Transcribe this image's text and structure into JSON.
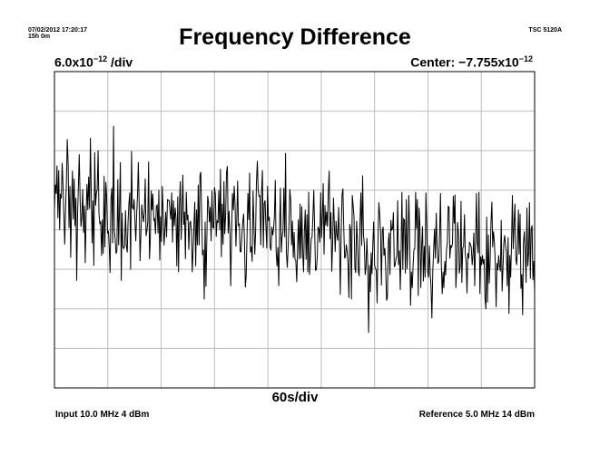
{
  "header": {
    "timestamp": "07/02/2012 17:20:17",
    "duration": "15h 0m",
    "instrument": "TSC 5120A"
  },
  "title": "Frequency Difference",
  "scale": {
    "y_mantissa": "6.0x10",
    "y_exp": "−12",
    "y_suffix": " /div",
    "center_label": "Center: −7.755x10",
    "center_exp": "−12",
    "x_per_div": "60s/div"
  },
  "footer": {
    "input": "Input 10.0 MHz 4 dBm",
    "reference": "Reference 5.0 MHz 14 dBm"
  },
  "chart_data": {
    "type": "line",
    "title": "Frequency Difference",
    "x_unit": "s",
    "x_per_div": 60,
    "x_divisions": 9,
    "xlim": [
      0,
      540
    ],
    "y_unit": "x10^-12",
    "y_per_div": 6.0,
    "y_center": -7.755,
    "y_divisions": 8,
    "ylim": [
      -31.755,
      16.245
    ],
    "grid": true,
    "series": [
      {
        "values": [
          -4.7,
          -0.9,
          -2.3,
          2.0,
          -6.0,
          1.3,
          -7.8,
          -2.3,
          -3.0,
          2.4,
          -1.0,
          -5.7,
          -10.0,
          -4.4,
          -0.4,
          6.0,
          2.2,
          -7.5,
          -1.1,
          -12.0,
          -3.4,
          1.2,
          -6.2,
          0.0,
          -7.2,
          -2.9,
          -15.5,
          -5.3,
          -0.9,
          3.7,
          -3.4,
          -7.3,
          -5.7,
          -1.6,
          -8.2,
          -4.1,
          -12.8,
          -5.2,
          -0.8,
          -4.8,
          0.3,
          -4.6,
          6.2,
          -1.7,
          -9.8,
          -3.3,
          -13.2,
          4.0,
          -4.1,
          -2.2,
          -1.6,
          4.3,
          -5.2,
          -6.9,
          -6.5,
          -11.7,
          -6.2,
          -11.4,
          0.4,
          -10.4,
          -0.5,
          -2.7,
          -8.3,
          -7.9,
          -10.2,
          -14.3,
          -3.1,
          -1.4,
          -9.8,
          8.0,
          -7.8,
          -9.4,
          -11.4,
          -10.9,
          -0.1,
          -10.1,
          -4.2,
          2.5,
          -15.5,
          -5.2,
          -10.3,
          -10.6,
          -10.2,
          -4.8,
          -10.2,
          -11.2,
          -6.5,
          -3.8,
          -2.1,
          -13.8,
          4.2,
          -4.4,
          -4.6,
          -3.1,
          -6.2,
          -9.5,
          -5.7,
          -2.5,
          2.5,
          -4.5,
          -12.5,
          -8.6,
          -3.9,
          -5.4,
          -6.6,
          -5.0,
          0.0,
          -8.7,
          -8.0,
          -6.6,
          2.6,
          -12.2,
          -9.4,
          -1.8,
          -4.8,
          -2.3,
          -6.3,
          -6.1,
          -8.4,
          -4.2,
          -4.0,
          -8.3,
          -1.7,
          -12.4,
          -5.7,
          -9.6,
          -1.1,
          -5.3,
          -10.1,
          -8.0,
          -5.0,
          -8.9,
          -3.2,
          -3.3,
          -3.3,
          -5.0,
          -6.2,
          -2.1,
          -9.7,
          -3.3,
          -7.2,
          -4.4,
          -6.0,
          -13.3,
          -2.7,
          -14.2,
          -3.9,
          -0.4,
          -9.3,
          -5.2,
          0.6,
          -7.0,
          -5.0,
          -12.2,
          -2.0,
          -6.3,
          -5.5,
          -10.8,
          -6.8,
          -6.4,
          -8.0,
          -14.2,
          -10.7,
          -6.8,
          -3.5,
          -13.3,
          -4.7,
          -10.1,
          -0.9,
          -10.1,
          0.5,
          1.0,
          -5.7,
          -11.6,
          -10.8,
          -18.3,
          -6.5,
          -16.4,
          -9.5,
          -2.6,
          -3.6,
          -6.6,
          -4.3,
          -9.5,
          -1.8,
          -7.4,
          -7.5,
          -1.3,
          -2.4,
          -8.8,
          -6.3,
          -6.7,
          -1.8,
          -7.8,
          1.5,
          -11.9,
          -3.8,
          -10.0,
          -0.4,
          -8.4,
          -5.6,
          0.9,
          1.9,
          -8.3,
          -4.9,
          -8.4,
          -16.3,
          -8.1,
          -2.2,
          -4.8,
          -1.1,
          -4.0,
          -10.3,
          -6.0,
          -0.3,
          -7.1,
          -6.9,
          -11.1,
          -11.1,
          -8.5,
          -6.5,
          -5.3,
          -9.2,
          -16.5,
          -14.8,
          -8.3,
          -2.2,
          -6.3,
          0.9,
          -11.2,
          -10.3,
          -12.6,
          -1.8,
          -6.8,
          -11.5,
          -8.1,
          -0.6,
          2.7,
          -1.6,
          -2.7,
          -2.6,
          -10.1,
          -1.9,
          1.3,
          -10.5,
          -3.8,
          -3.3,
          -7.0,
          -10.6,
          -1.1,
          -6.4,
          -5.8,
          -10.4,
          -10.9,
          -7.3,
          -8.6,
          -7.6,
          -5.8,
          -0.2,
          -11.0,
          -13.3,
          -10.4,
          -16.3,
          -7.6,
          -1.4,
          -11.2,
          -8.8,
          -7.9,
          -1.4,
          -8.9,
          3.9,
          -11.2,
          -13.5,
          -10.5,
          -6.8,
          -1.6,
          -3.3,
          -10.1,
          -6.4,
          -12.0,
          -8.1,
          -12.3,
          -12.4,
          -15.7,
          -10.8,
          -6.2,
          -12.2,
          -3.8,
          -12.1,
          -4.2,
          -11.1,
          -14.2,
          -8.1,
          -4.7,
          -12.3,
          -5.4,
          -14.2,
          -2.0,
          -14.6,
          -11.9,
          -9.1,
          -8.9,
          -5.4,
          -1.7,
          -8.1,
          -13.9,
          -13.8,
          -12.1,
          -7.3,
          -7.7,
          -9.7,
          -2.1,
          -9.0,
          -6.1,
          -0.7,
          -11.5,
          -4.0,
          -7.1,
          -5.0,
          -7.3,
          -1.9,
          1.2,
          -9.2,
          -5.1,
          -14.1,
          -9.7,
          -2.9,
          -6.8,
          -11.1,
          -6.4,
          -8.5,
          -9.4,
          -4.3,
          -9.5,
          -17.6,
          -8.1,
          -2.5,
          -1.5,
          -7.4,
          -12.1,
          -11.8,
          -10.0,
          -11.1,
          -12.9,
          -18.1,
          -6.9,
          -7.8,
          -18.3,
          -2.5,
          -4.1,
          -5.8,
          -13.6,
          -14.3,
          -6.4,
          -9.2,
          -14.0,
          -14.8,
          -6.6,
          -2.1,
          -10.2,
          0.5,
          -8.4,
          -10.0,
          -14.6,
          -13.4,
          -9.0,
          -13.0,
          -23.4,
          -13.1,
          -17.2,
          -11.2,
          -14.5,
          -9.8,
          -6.5,
          -13.2,
          -13.6,
          -14.0,
          -18.9,
          -9.5,
          -3.6,
          -5.4,
          -8.2,
          -16.2,
          -7.9,
          -7.3,
          -11.7,
          -10.5,
          -13.5,
          -18.5,
          -18.0,
          -9.7,
          -8.2,
          -14.6,
          -6.3,
          -7.8,
          -7.6,
          -5.1,
          -13.4,
          -13.1,
          -12.2,
          -11.7,
          -3.3,
          -13.1,
          -10.9,
          -16.9,
          -10.8,
          -2.0,
          -13.8,
          -6.1,
          -6.3,
          -14.4,
          -3.1,
          -13.7,
          -9.9,
          -2.5,
          -8.4,
          -19.3,
          -14.1,
          -16.6,
          -13.2,
          -10.8,
          -10.6,
          -2.0,
          -7.6,
          -3.1,
          -17.8,
          -4.4,
          -7.0,
          -16.6,
          -10.3,
          -7.2,
          -15.6,
          -10.2,
          -15.0,
          -2.1,
          -7.2,
          -14.1,
          -15.0,
          -10.1,
          -14.4,
          -16.6,
          -21.2,
          -14.1,
          -11.0,
          -7.6,
          -12.1,
          -5.2,
          -9.9,
          -12.9,
          -12.5,
          -8.4,
          -2.2,
          -12.9,
          -17.5,
          -14.1,
          -16.6,
          -12.5,
          -14.7,
          -10.8,
          -9.8,
          -4.2,
          -4.3,
          -12.1,
          -10.1,
          -10.4,
          -9.9,
          -2.6,
          -6.8,
          -2.4,
          -16.6,
          -13.4,
          -6.6,
          -8.3,
          -14.4,
          -13.3,
          -3.4,
          -15.8,
          -10.5,
          -10.4,
          -5.4,
          -11.4,
          -12.7,
          -17.4,
          -11.3,
          -12.1,
          -9.6,
          -10.0,
          -10.4,
          -13.1,
          -11.5,
          -8.2,
          -16.3,
          -10.0,
          -2.2,
          -9.7,
          -11.3,
          -2.0,
          -17.5,
          -11.8,
          -13.1,
          -11.6,
          -13.0,
          -12.2,
          -18.2,
          -19.8,
          -5.8,
          -18.8,
          -8.5,
          -15.9,
          -12.5,
          -6.7,
          -3.5,
          -10.4,
          -8.0,
          -9.7,
          -12.6,
          -19.5,
          -12.8,
          -13.9,
          -11.6,
          -13.2,
          -14.1,
          -6.3,
          -17.1,
          -13.7,
          -9.7,
          -8.6,
          -10.1,
          -11.1,
          -16.3,
          -8.9,
          -20.5,
          -11.6,
          -15.0,
          -10.2,
          -2.5,
          -10.7,
          -6.8,
          -3.8,
          -12.1,
          -13.1,
          -10.5,
          -4.7,
          -11.5,
          -5.3,
          -16.7,
          -14.5,
          -20.7,
          -9.7,
          -8.0,
          -11.4,
          -15.8,
          -4.4,
          -13.3,
          -11.3,
          -3.6,
          -15.2,
          -7.7,
          -7.1,
          -15.4,
          -12.5,
          -17.2
        ]
      }
    ]
  }
}
